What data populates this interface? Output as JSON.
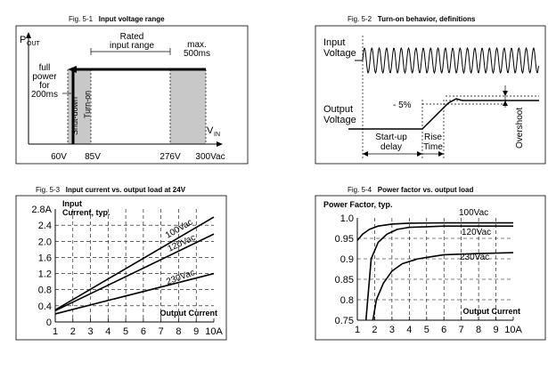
{
  "figures": [
    {
      "number": "Fig. 5-1",
      "title": "Input voltage range",
      "labels": {
        "p_out": "P",
        "p_out_sub": "OUT",
        "v_in": "V",
        "v_in_sub": "IN",
        "rated": [
          "Rated",
          "input range"
        ],
        "max": [
          "max.",
          "500ms"
        ],
        "full_power": [
          "full",
          "power",
          "for",
          "200ms"
        ],
        "shutdown": "Shut-down",
        "turnon": "Turn-on"
      },
      "ticks": [
        "60V",
        "85V",
        "276V",
        "300Vac"
      ]
    },
    {
      "number": "Fig. 5-2",
      "title": "Turn-on behavior, definitions",
      "labels": {
        "input_voltage": [
          "Input",
          "Voltage"
        ],
        "output_voltage": [
          "Output",
          "Voltage"
        ],
        "minus5": "- 5%",
        "startup_delay": [
          "Start-up",
          "delay"
        ],
        "rise_time": [
          "Rise",
          "Time"
        ],
        "overshoot": "Overshoot"
      }
    },
    {
      "number": "Fig. 5-3",
      "title": "Input current vs. output load at 24V"
    },
    {
      "number": "Fig. 5-4",
      "title": "Power factor vs. output load"
    }
  ],
  "chart_data": [
    {
      "type": "line",
      "title": "Input current vs. output load at 24V",
      "ylabel": "Input Current, typ.",
      "xlabel": "Output Current",
      "xlim": [
        1,
        10
      ],
      "ylim": [
        0,
        2.8
      ],
      "x_ticks": [
        "1",
        "2",
        "3",
        "4",
        "5",
        "6",
        "7",
        "8",
        "9",
        "10A"
      ],
      "y_ticks": [
        "0",
        "0.4",
        "0.8",
        "1.2",
        "1.6",
        "2.0",
        "2.4",
        "2.8A"
      ],
      "grid": true,
      "series": [
        {
          "name": "100Vac",
          "x": [
            1,
            10
          ],
          "y": [
            0.3,
            2.6
          ]
        },
        {
          "name": "120Vac",
          "x": [
            1,
            10
          ],
          "y": [
            0.28,
            2.18
          ]
        },
        {
          "name": "230Vac",
          "x": [
            1,
            10
          ],
          "y": [
            0.2,
            1.2
          ]
        }
      ]
    },
    {
      "type": "line",
      "title": "Power factor vs. output load",
      "ylabel": "Power Factor, typ.",
      "xlabel": "Output Current",
      "xlim": [
        1,
        10
      ],
      "ylim": [
        0.75,
        1.0
      ],
      "x_ticks": [
        "1",
        "2",
        "3",
        "4",
        "5",
        "6",
        "7",
        "8",
        "9",
        "10A"
      ],
      "y_ticks": [
        "0.75",
        "0.8",
        "0.85",
        "0.9",
        "0.95",
        "1.0"
      ],
      "grid": true,
      "series": [
        {
          "name": "100Vac",
          "x": [
            1,
            1.3,
            1.7,
            2.2,
            3,
            4,
            6,
            8,
            10
          ],
          "y": [
            0.945,
            0.96,
            0.972,
            0.98,
            0.985,
            0.987,
            0.988,
            0.988,
            0.988
          ]
        },
        {
          "name": "120Vac",
          "x": [
            1.5,
            1.8,
            2.2,
            2.7,
            3.3,
            4,
            6,
            8,
            10
          ],
          "y": [
            0.75,
            0.9,
            0.94,
            0.96,
            0.972,
            0.977,
            0.98,
            0.98,
            0.98
          ]
        },
        {
          "name": "230Vac",
          "x": [
            1.9,
            2.1,
            2.5,
            3,
            3.6,
            4.5,
            6,
            8,
            10
          ],
          "y": [
            0.75,
            0.8,
            0.84,
            0.87,
            0.888,
            0.9,
            0.91,
            0.913,
            0.915
          ]
        }
      ]
    }
  ]
}
